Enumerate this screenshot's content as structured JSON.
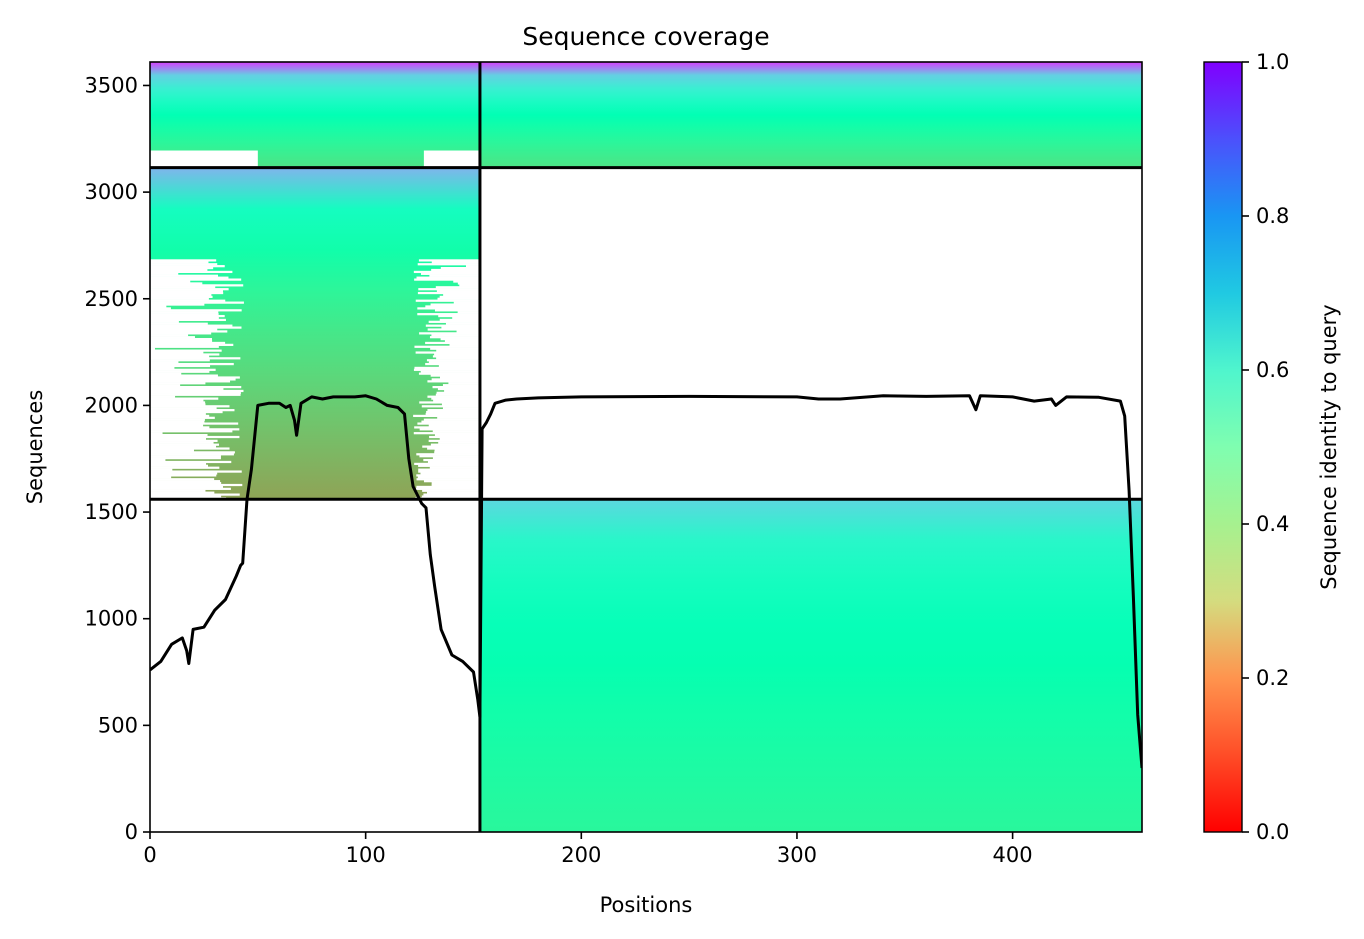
{
  "chart_data": {
    "type": "heatmap",
    "title": "Sequence coverage",
    "xlabel": "Positions",
    "ylabel": "Sequences",
    "xlim": [
      0,
      460
    ],
    "ylim": [
      0,
      3610
    ],
    "xticks": [
      0,
      100,
      200,
      300,
      400
    ],
    "yticks": [
      0,
      500,
      1000,
      1500,
      2000,
      2500,
      3000,
      3500
    ],
    "colorbar": {
      "label": "Sequence identity to query",
      "colormap": "rainbow_r",
      "range": [
        0.0,
        1.0
      ],
      "ticks": [
        0.0,
        0.2,
        0.4,
        0.6,
        0.8,
        1.0
      ]
    },
    "boundaries": {
      "chain_split_position": 153,
      "row_splits": [
        1560,
        3115
      ]
    },
    "blocks": [
      {
        "name": "both-chains",
        "x": [
          0,
          460
        ],
        "y": [
          3115,
          3610
        ],
        "identity_top": 0.92,
        "identity_bottom": 0.35
      },
      {
        "name": "chain-A-only",
        "x": [
          0,
          153
        ],
        "y": [
          1560,
          3115
        ],
        "identity_top": 0.75,
        "identity_bottom": 0.22
      },
      {
        "name": "chain-B-only",
        "x": [
          153,
          460
        ],
        "y": [
          0,
          1560
        ],
        "identity_top": 0.68,
        "identity_bottom": 0.42
      }
    ],
    "series": [
      {
        "name": "coverage",
        "color": "#000000",
        "x": [
          0,
          5,
          10,
          15,
          17,
          18,
          20,
          25,
          30,
          35,
          40,
          42,
          43,
          45,
          47,
          50,
          55,
          60,
          63,
          65,
          67,
          68,
          70,
          75,
          80,
          85,
          90,
          95,
          100,
          105,
          110,
          115,
          118,
          120,
          122,
          124,
          126,
          128,
          130,
          132,
          135,
          140,
          145,
          150,
          152,
          153,
          154,
          156,
          158,
          160,
          165,
          170,
          180,
          200,
          250,
          300,
          310,
          320,
          340,
          360,
          380,
          383,
          385,
          400,
          410,
          418,
          420,
          425,
          440,
          450,
          452,
          454,
          456,
          458,
          460
        ],
        "y": [
          760,
          800,
          880,
          910,
          850,
          790,
          950,
          960,
          1040,
          1090,
          1200,
          1250,
          1260,
          1560,
          1700,
          2000,
          2010,
          2010,
          1990,
          2000,
          1930,
          1860,
          2010,
          2040,
          2030,
          2040,
          2040,
          2040,
          2045,
          2030,
          2000,
          1990,
          1960,
          1750,
          1620,
          1580,
          1540,
          1520,
          1300,
          1150,
          950,
          830,
          800,
          750,
          620,
          540,
          1890,
          1920,
          1960,
          2010,
          2025,
          2030,
          2035,
          2040,
          2042,
          2040,
          2030,
          2030,
          2045,
          2042,
          2045,
          1980,
          2045,
          2040,
          2020,
          2030,
          2000,
          2040,
          2038,
          2020,
          1950,
          1600,
          1100,
          550,
          300
        ]
      }
    ]
  }
}
